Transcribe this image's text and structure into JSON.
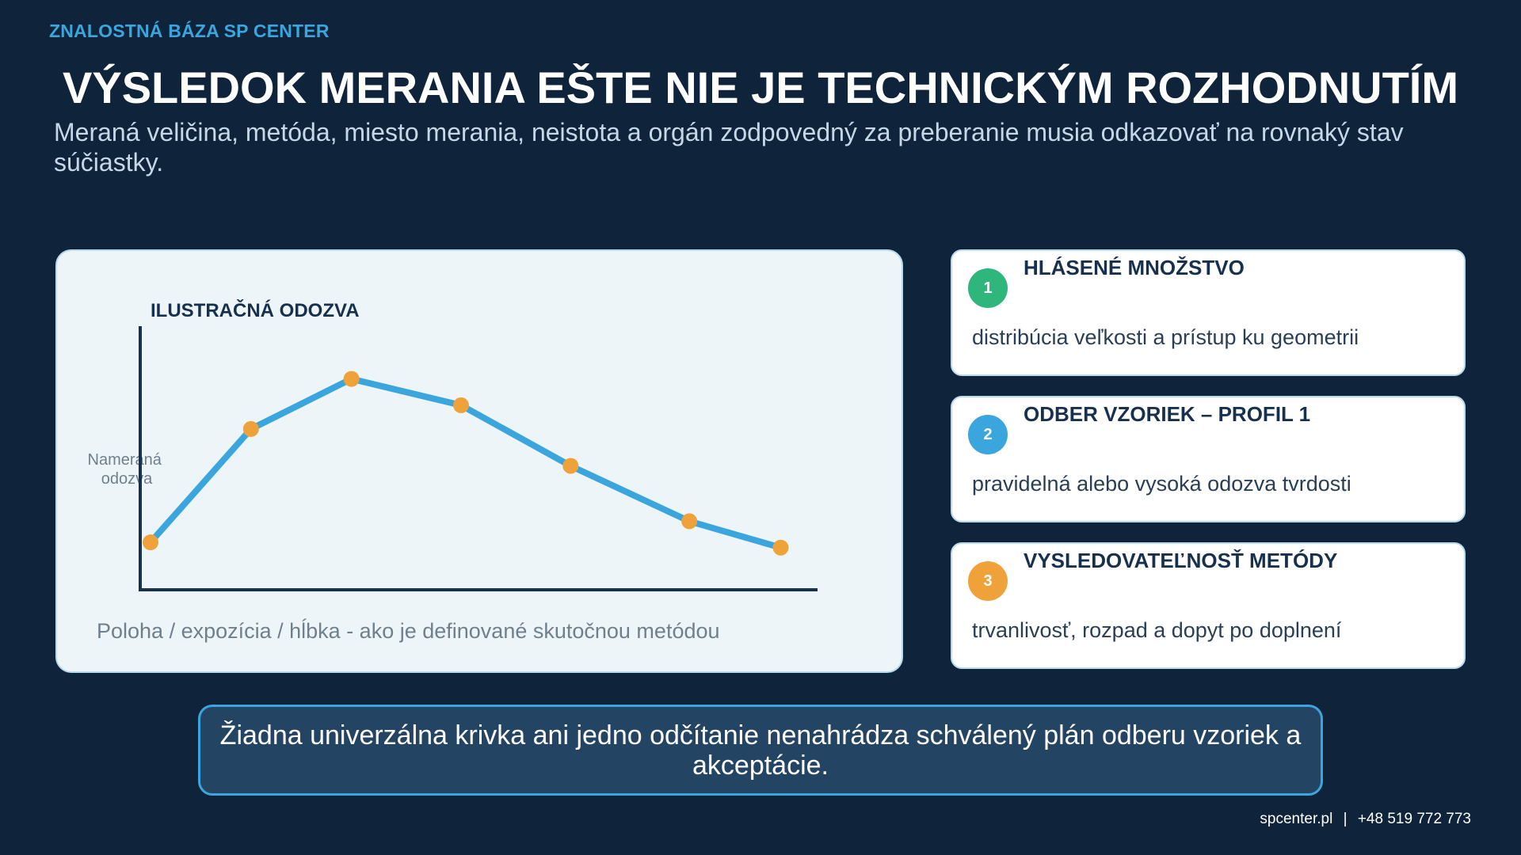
{
  "header": {
    "brand": "ZNALOSTNÁ BÁZA SP CENTER",
    "title": "VÝSLEDOK MERANIA EŠTE NIE JE TECHNICKÝM ROZHODNUTÍM",
    "subtitle": "Meraná veličina, metóda, miesto merania, neistota a orgán zodpovedný za preberanie musia odkazovať na rovnaký stav súčiastky."
  },
  "chart": {
    "caption": "Poloha / expozícia / hĺbka - ako je definované skutočnou metódou"
  },
  "chart_data": {
    "type": "line",
    "title": "ILUSTRAČNÁ ODOZVA",
    "ylabel_line1": "Nameraná",
    "ylabel_line2": "odozva",
    "xlabel": "",
    "grid": false,
    "legend": "none",
    "x": [
      0,
      1.1,
      2.2,
      3.4,
      4.6,
      5.9,
      6.9
    ],
    "y": [
      1.8,
      6.1,
      8.0,
      7.0,
      4.7,
      2.6,
      1.6
    ],
    "xlim": [
      0,
      7
    ],
    "ylim": [
      0,
      10
    ],
    "line_color": "#3aa6dd",
    "marker_color": "#f0a23a",
    "axis_color": "#17304d"
  },
  "cards": [
    {
      "number": "1",
      "title": "HLÁSENÉ MNOŽSTVO",
      "desc": "distribúcia veľkosti a prístup ku geometrii",
      "color": "#2eb67d"
    },
    {
      "number": "2",
      "title": "ODBER VZORIEK – PROFIL 1",
      "desc": "pravidelná alebo vysoká odozva tvrdosti",
      "color": "#3aa6dd"
    },
    {
      "number": "3",
      "title": "VYSLEDOVATEĽNOSŤ METÓDY",
      "desc": "trvanlivosť, rozpad a dopyt po doplnení",
      "color": "#f0a23a"
    }
  ],
  "note": "Žiadna univerzálna krivka ani jedno odčítanie nenahrádza schválený plán odberu vzoriek a akceptácie.",
  "footer": {
    "website": "spcenter.pl",
    "separator": "|",
    "phone": "+48 519 772 773"
  }
}
